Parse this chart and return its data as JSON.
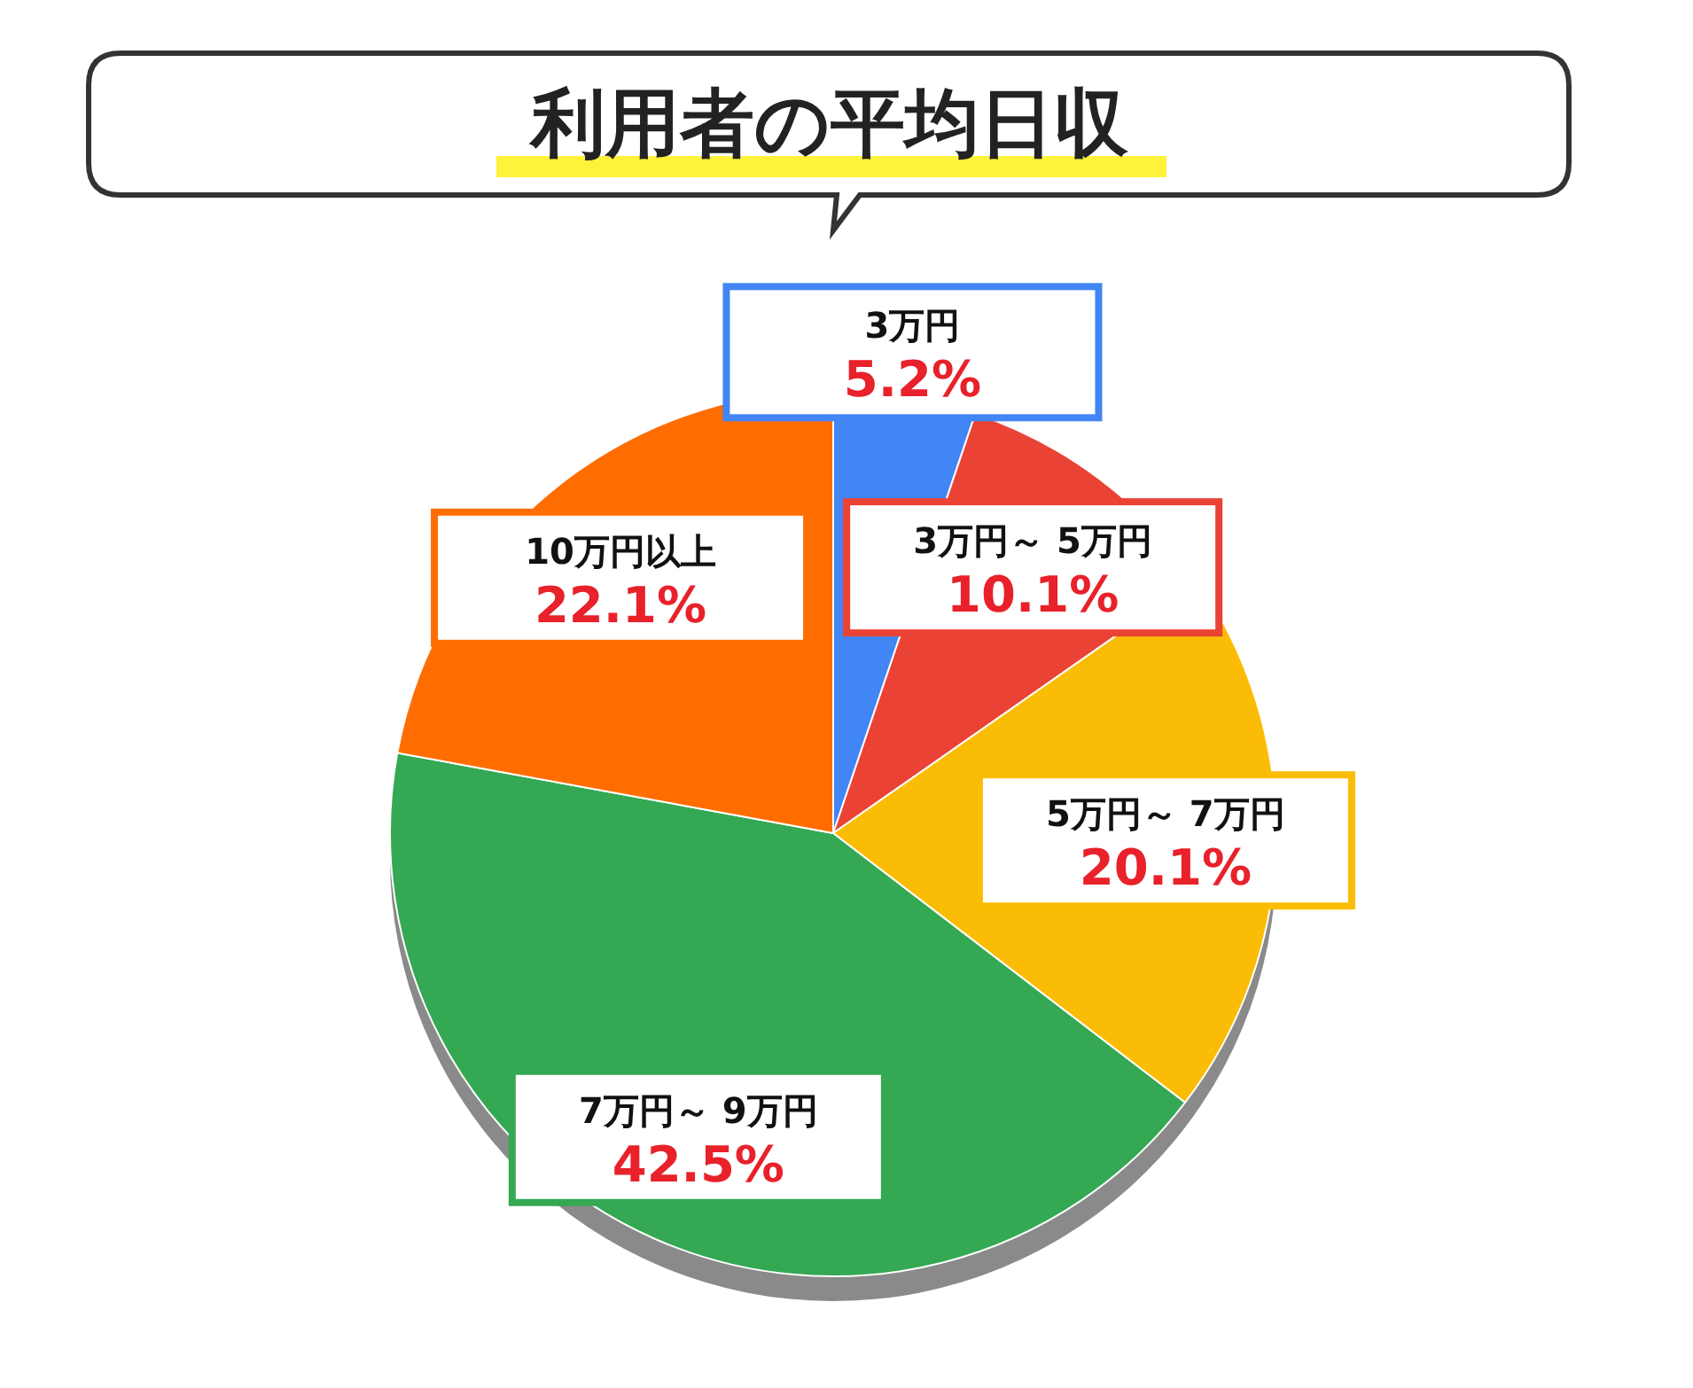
{
  "chart_data": {
    "type": "pie",
    "title": "利用者の平均日収",
    "categories": [
      "3万円",
      "3万円～ 5万円",
      "5万円～ 7万円",
      "7万円～ 9万円",
      "10万円以上"
    ],
    "values": [
      5.2,
      10.1,
      20.1,
      42.5,
      22.1
    ],
    "value_labels": [
      "5.2%",
      "10.1%",
      "20.1%",
      "42.5%",
      "22.1%"
    ],
    "colors": [
      "#4285f4",
      "#ea4335",
      "#fbbc05",
      "#34a853",
      "#ff6d01"
    ]
  }
}
